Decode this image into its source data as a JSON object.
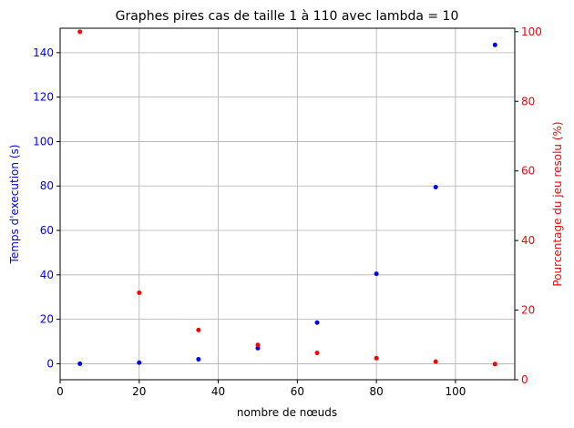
{
  "chart_data": {
    "type": "scatter",
    "title": "Graphes pires cas de taille 1 à 110 avec lambda = 10",
    "xlabel": "nombre de nœuds",
    "grid": true,
    "x": [
      5,
      20,
      35,
      50,
      65,
      80,
      95,
      110
    ],
    "xlim": [
      0,
      115
    ],
    "xticks": [
      0,
      20,
      40,
      60,
      80,
      100
    ],
    "left_axis": {
      "label": "Temps d'execution (s)",
      "color": "#0000ff",
      "ylim": [
        -7.2,
        151
      ],
      "ticks": [
        0,
        20,
        40,
        60,
        80,
        100,
        120,
        140
      ]
    },
    "right_axis": {
      "label": "Pourcentage du jeu resolu (%)",
      "color": "#ff0000",
      "ylim": [
        0,
        101
      ],
      "ticks": [
        0,
        20,
        40,
        60,
        80,
        100
      ]
    },
    "series": [
      {
        "axis": "left",
        "color": "#0000ff",
        "values": [
          0.0,
          0.5,
          2.0,
          7.0,
          18.5,
          40.5,
          79.5,
          143.5
        ]
      },
      {
        "axis": "right",
        "color": "#ff0000",
        "values": [
          100,
          25.0,
          14.3,
          10.0,
          7.7,
          6.2,
          5.2,
          4.5
        ]
      }
    ]
  }
}
